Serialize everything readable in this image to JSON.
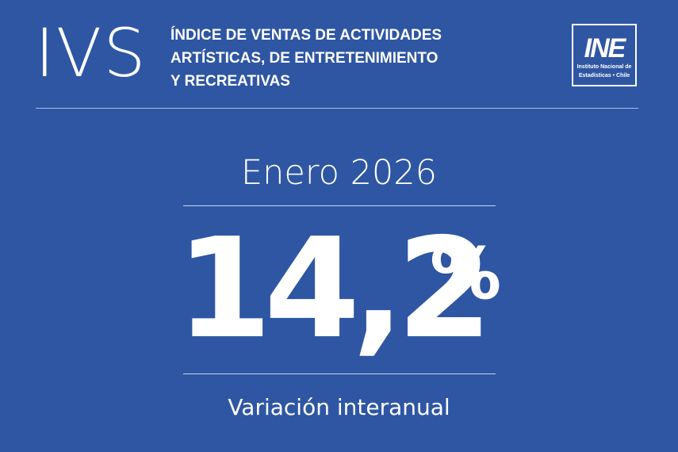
{
  "header": {
    "acronym": "IVS",
    "title_lines": [
      "ÍNDICE DE VENTAS DE ACTIVIDADES",
      "ARTÍSTICAS, DE ENTRETENIMIENTO",
      "Y RECREATIVAS"
    ],
    "logo": {
      "mark": "INE",
      "sub_lines": [
        "Instituto Nacional de",
        "Estadísticas • Chile"
      ]
    }
  },
  "main": {
    "period": "Enero 2026",
    "value": "14,2",
    "unit": "%",
    "caption": "Variación interanual"
  },
  "colors": {
    "background": "#2e56a3",
    "foreground": "#ffffff"
  }
}
